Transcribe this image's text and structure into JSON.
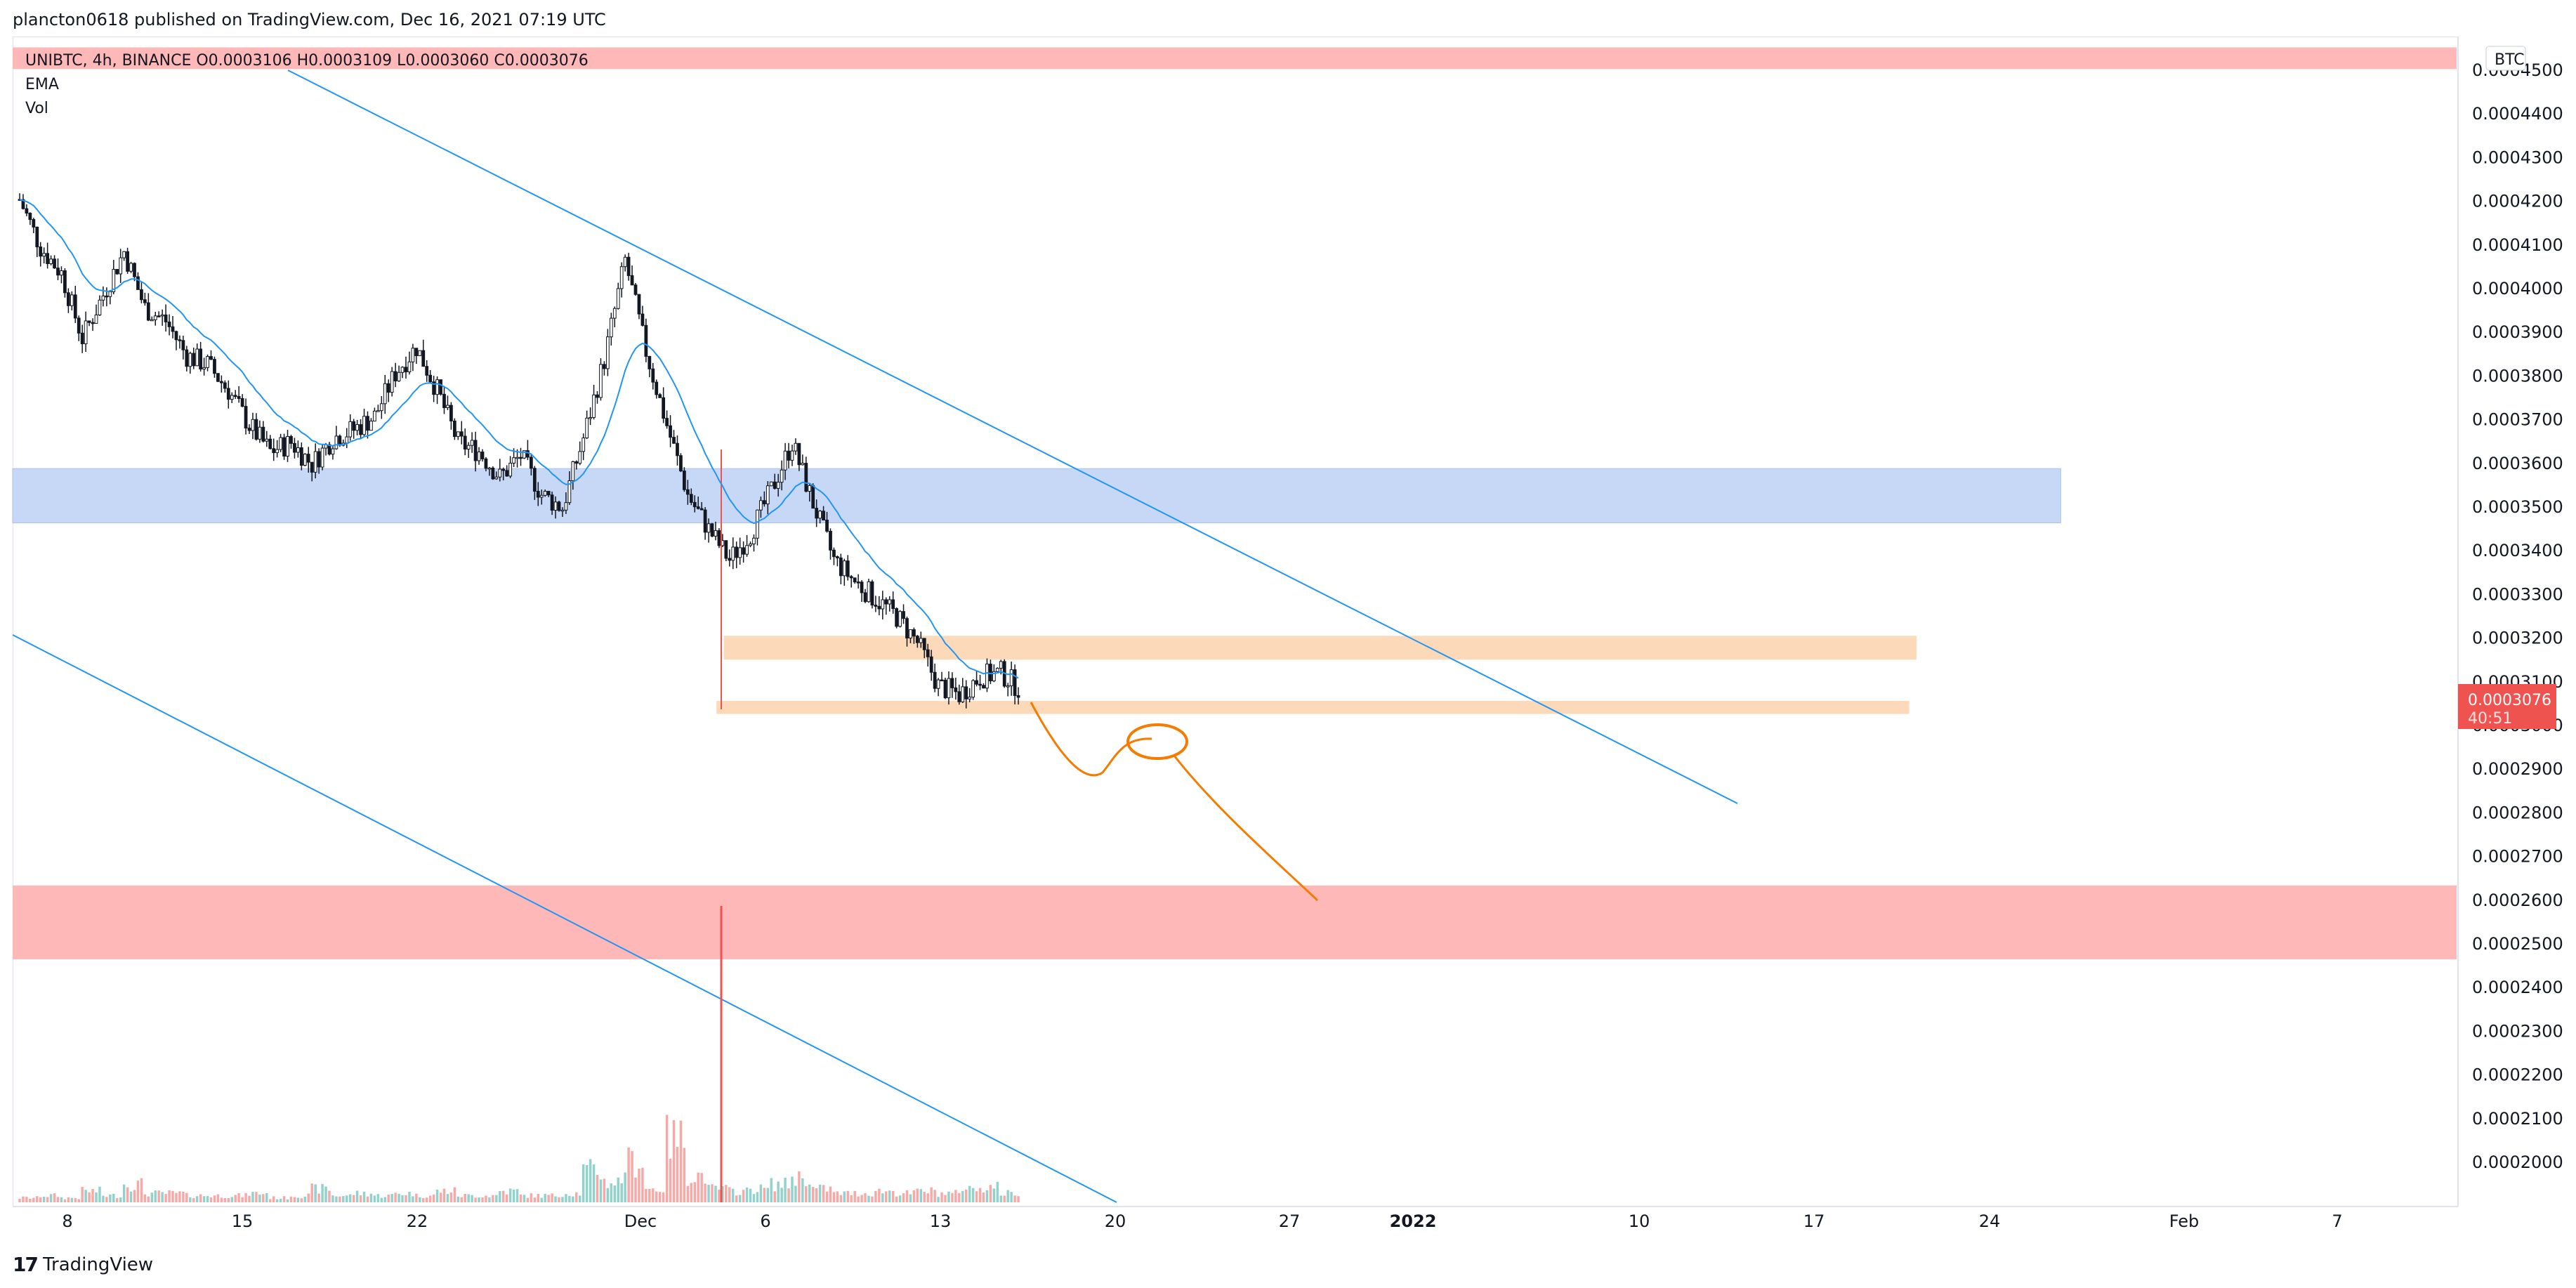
{
  "header": {
    "publish_line": "plancton0618 published on TradingView.com, Dec 16, 2021 07:19 UTC"
  },
  "legend": {
    "symbol_line": "UNIBTC, 4h, BINANCE  O0.0003106  H0.0003109  L0.0003060  C0.0003076",
    "ema": "EMA",
    "vol": "Vol"
  },
  "price_scale": {
    "currency": "BTC",
    "last_price": "0.0003076",
    "countdown": "40:51"
  },
  "footer": {
    "brand": "TradingView",
    "logo": "17"
  },
  "colors": {
    "up": "#26a69a",
    "down": "#ef5350",
    "candle": "#131722",
    "ema": "#2196f3",
    "blue_zone": "#c7d8f6",
    "orange_zone": "#fcd9b8",
    "red_zone": "#ffb8b8",
    "trendline": "#2196f3",
    "drawing": "#f57c00",
    "price_tag": "#ef5350"
  },
  "chart_data": {
    "type": "candlestick",
    "y_ticks": [
      "0.0004500",
      "0.0004400",
      "0.0004300",
      "0.0004200",
      "0.0004100",
      "0.0004000",
      "0.0003900",
      "0.0003800",
      "0.0003700",
      "0.0003600",
      "0.0003500",
      "0.0003400",
      "0.0003300",
      "0.0003200",
      "0.0003100",
      "0.0003000",
      "0.0002900",
      "0.0002800",
      "0.0002700",
      "0.0002600",
      "0.0002500",
      "0.0002400",
      "0.0002300",
      "0.0002200",
      "0.0002100",
      "0.0002000"
    ],
    "x_ticks": [
      "8",
      "15",
      "22",
      "Dec",
      "6",
      "13",
      "20",
      "27",
      "2022",
      "10",
      "17",
      "24",
      "Feb",
      "7"
    ],
    "ylim": [
      0.0001955,
      0.0004575
    ],
    "price_path": [
      [
        0,
        0.00042
      ],
      [
        1,
        0.000409
      ],
      [
        2,
        0.000403
      ],
      [
        3,
        0.000388
      ],
      [
        4,
        0.000398
      ],
      [
        5,
        0.000408
      ],
      [
        6,
        0.000395
      ],
      [
        7,
        0.000392
      ],
      [
        8,
        0.000384
      ],
      [
        9,
        0.000382
      ],
      [
        10,
        0.000376
      ],
      [
        11,
        0.000368
      ],
      [
        12,
        0.000362
      ],
      [
        13,
        0.000364
      ],
      [
        14,
        0.000359
      ],
      [
        15,
        0.000365
      ],
      [
        16,
        0.000367
      ],
      [
        17,
        0.00037
      ],
      [
        18,
        0.00038
      ],
      [
        19,
        0.000386
      ],
      [
        20,
        0.000376
      ],
      [
        21,
        0.000364
      ],
      [
        22,
        0.000362
      ],
      [
        23,
        0.000356
      ],
      [
        24,
        0.000361
      ],
      [
        25,
        0.000352
      ],
      [
        26,
        0.000349
      ],
      [
        27,
        0.000365
      ],
      [
        28,
        0.000383
      ],
      [
        29,
        0.000406
      ],
      [
        30,
        0.000385
      ],
      [
        31,
        0.000368
      ],
      [
        32,
        0.000352
      ],
      [
        33,
        0.000344
      ],
      [
        34,
        0.000337
      ],
      [
        35,
        0.000343
      ],
      [
        36,
        0.000353
      ],
      [
        37,
        0.000364
      ],
      [
        38,
        0.00035
      ],
      [
        39,
        0.000337
      ],
      [
        40,
        0.000332
      ],
      [
        41,
        0.000328
      ],
      [
        42,
        0.000324
      ],
      [
        43,
        0.000318
      ],
      [
        44,
        0.000308
      ],
      [
        45,
        0.000306
      ],
      [
        46,
        0.00031
      ],
      [
        47,
        0.000311
      ],
      [
        48,
        0.000307
      ]
    ],
    "volume_path": [
      2,
      3,
      2,
      5,
      3,
      8,
      4,
      4,
      3,
      3,
      3,
      4,
      2,
      3,
      6,
      3,
      4,
      3,
      4,
      3,
      5,
      3,
      3,
      5,
      3,
      3,
      4,
      14,
      9,
      18,
      6,
      28,
      12,
      6,
      5,
      6,
      8,
      11,
      6,
      4,
      4,
      5,
      4,
      5,
      4,
      6,
      7,
      4,
      3
    ],
    "zones": [
      {
        "name": "red-top",
        "y0": 0.000455,
        "y1": 0.00045,
        "x0": 0,
        "x1": 1
      },
      {
        "name": "blue-zone",
        "y0": 0.000358,
        "y1": 0.0003455,
        "x0": 0,
        "x1": 0.838
      },
      {
        "name": "orange-upper",
        "y0": 0.0003195,
        "y1": 0.000314,
        "x0": 0.291,
        "x1": 0.779
      },
      {
        "name": "orange-lower",
        "y0": 0.0003045,
        "y1": 0.0003015,
        "x0": 0.288,
        "x1": 0.776
      },
      {
        "name": "red-support",
        "y0": 0.000262,
        "y1": 0.000245,
        "x0": 0,
        "x1": 1
      }
    ]
  }
}
